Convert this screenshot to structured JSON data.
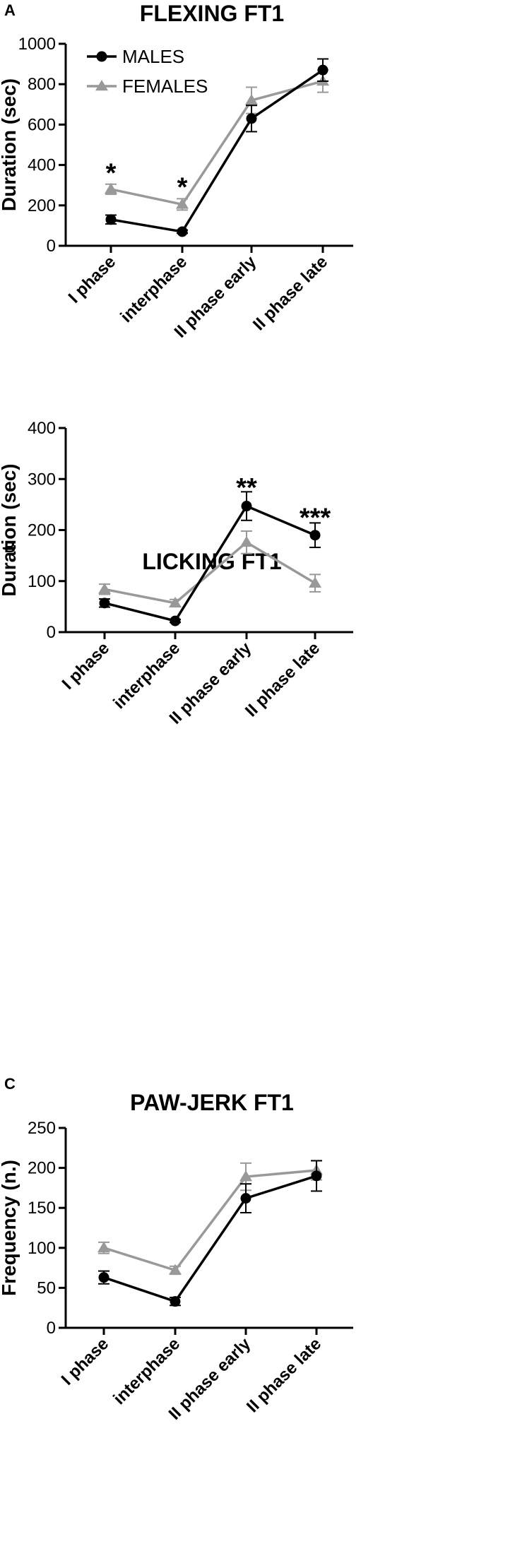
{
  "panels": [
    {
      "letter": "A"
    },
    {
      "letter": "B"
    },
    {
      "letter": "C"
    }
  ],
  "chart_data": [
    {
      "type": "line",
      "title": "FLEXING FT1",
      "ylabel": "Duration (sec)",
      "xlabel": "",
      "categories": [
        "I phase",
        "interphase",
        "II phase early",
        "II phase late"
      ],
      "ylim": [
        0,
        1000
      ],
      "yticks": [
        0,
        200,
        400,
        600,
        800,
        1000
      ],
      "grid": false,
      "legend": "top-left",
      "series": [
        {
          "name": "MALES",
          "color": "#000000",
          "marker": "circle",
          "values": [
            130,
            70,
            630,
            870
          ],
          "errors": [
            22,
            8,
            65,
            55
          ]
        },
        {
          "name": "FEMALES",
          "color": "#999999",
          "marker": "triangle",
          "values": [
            280,
            205,
            720,
            815
          ],
          "errors": [
            25,
            28,
            65,
            55
          ]
        }
      ],
      "annotations": [
        {
          "text": "*",
          "category": 0,
          "y": 365
        },
        {
          "text": "*",
          "category": 1,
          "y": 295
        }
      ]
    },
    {
      "type": "line",
      "title": "LICKING FT1",
      "ylabel": "Duration (sec)",
      "xlabel": "",
      "categories": [
        "I phase",
        "interphase",
        "II phase early",
        "II phase late"
      ],
      "ylim": [
        0,
        400
      ],
      "yticks": [
        0,
        100,
        200,
        300,
        400
      ],
      "grid": false,
      "legend": "none",
      "series": [
        {
          "name": "MALES",
          "color": "#000000",
          "marker": "circle",
          "values": [
            57,
            22,
            247,
            190
          ],
          "errors": [
            8,
            3,
            28,
            24
          ]
        },
        {
          "name": "FEMALES",
          "color": "#999999",
          "marker": "triangle",
          "values": [
            84,
            57,
            176,
            96
          ],
          "errors": [
            10,
            7,
            22,
            17
          ]
        }
      ],
      "annotations": [
        {
          "text": "**",
          "category": 2,
          "y": 285
        },
        {
          "text": "***",
          "category": 3,
          "y": 226
        }
      ]
    },
    {
      "type": "line",
      "title": "PAW-JERK FT1",
      "ylabel": "Frequency (n.)",
      "xlabel": "",
      "categories": [
        "I phase",
        "interphase",
        "II phase early",
        "II phase late"
      ],
      "ylim": [
        0,
        250
      ],
      "yticks": [
        0,
        50,
        100,
        150,
        200,
        250
      ],
      "grid": false,
      "legend": "none",
      "series": [
        {
          "name": "MALES",
          "color": "#000000",
          "marker": "circle",
          "values": [
            63,
            33,
            162,
            190
          ],
          "errors": [
            8,
            5,
            18,
            19
          ]
        },
        {
          "name": "FEMALES",
          "color": "#999999",
          "marker": "triangle",
          "values": [
            100,
            72,
            189,
            197
          ],
          "errors": [
            7,
            5,
            17,
            12
          ]
        }
      ],
      "annotations": []
    }
  ]
}
